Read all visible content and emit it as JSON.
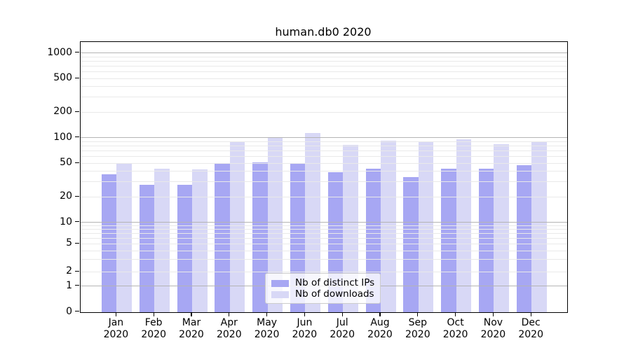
{
  "title": "human.db0 2020",
  "legend": {
    "items": [
      {
        "label": "Nb of distinct IPs",
        "color": "#a7a7f3"
      },
      {
        "label": "Nb of downloads",
        "color": "#d8d8f6"
      }
    ]
  },
  "y_axis": {
    "tick_labels": [
      "0",
      "1",
      "2",
      "5",
      "10",
      "20",
      "50",
      "100",
      "200",
      "500",
      "1000"
    ]
  },
  "chart_data": {
    "type": "bar",
    "title": "human.db0 2020",
    "categories": [
      "Jan 2020",
      "Feb 2020",
      "Mar 2020",
      "Apr 2020",
      "May 2020",
      "Jun 2020",
      "Jul 2020",
      "Aug 2020",
      "Sep 2020",
      "Oct 2020",
      "Nov 2020",
      "Dec 2020"
    ],
    "series": [
      {
        "name": "Nb of distinct IPs",
        "color": "#a7a7f3",
        "values": [
          37,
          28,
          28,
          49,
          51,
          49,
          39,
          43,
          34,
          43,
          43,
          47
        ]
      },
      {
        "name": "Nb of downloads",
        "color": "#d8d8f6",
        "values": [
          50,
          43,
          42,
          91,
          102,
          113,
          83,
          93,
          89,
          95,
          84,
          91
        ]
      }
    ],
    "yscale": "symlog",
    "yticks": [
      0,
      1,
      2,
      5,
      10,
      20,
      50,
      100,
      200,
      500,
      1000
    ],
    "ylim": [
      0,
      1300
    ],
    "grid": true,
    "grid_on_top_of_bars": true,
    "legend_position": "lower center",
    "colors": {
      "major_grid": "#b4b4b4",
      "minor_grid": "#e9e9e9",
      "frame": "#000000"
    }
  }
}
